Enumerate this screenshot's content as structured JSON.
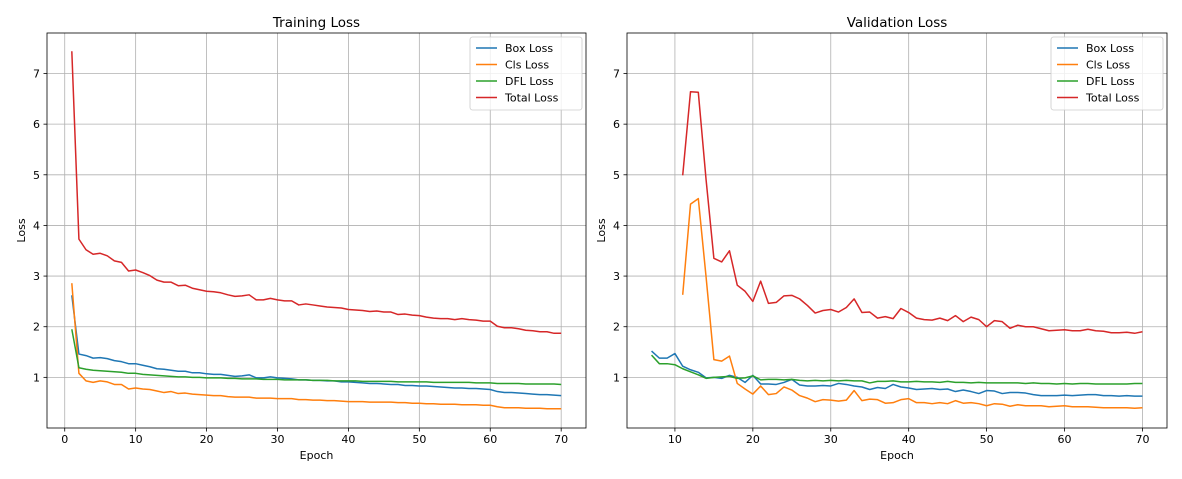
{
  "chart_data": [
    {
      "type": "line",
      "title": "Training Loss",
      "xlabel": "Epoch",
      "ylabel": "Loss",
      "xlim": [
        -2.5,
        73.5
      ],
      "ylim": [
        0.0,
        7.8
      ],
      "xticks": [
        0,
        10,
        20,
        30,
        40,
        50,
        60,
        70
      ],
      "yticks": [
        1,
        2,
        3,
        4,
        5,
        6,
        7
      ],
      "grid": true,
      "legend_position": "top-right",
      "series": [
        {
          "name": "Box Loss",
          "color": "#1f77b4",
          "x_start": 1,
          "values": [
            2.62,
            1.46,
            1.43,
            1.38,
            1.39,
            1.37,
            1.33,
            1.31,
            1.27,
            1.27,
            1.24,
            1.21,
            1.17,
            1.16,
            1.14,
            1.12,
            1.12,
            1.09,
            1.09,
            1.07,
            1.06,
            1.06,
            1.04,
            1.02,
            1.03,
            1.05,
            0.99,
            0.99,
            1.01,
            0.99,
            0.98,
            0.97,
            0.95,
            0.95,
            0.94,
            0.94,
            0.93,
            0.93,
            0.91,
            0.91,
            0.9,
            0.89,
            0.88,
            0.88,
            0.87,
            0.86,
            0.86,
            0.84,
            0.84,
            0.83,
            0.83,
            0.82,
            0.81,
            0.8,
            0.79,
            0.79,
            0.78,
            0.78,
            0.77,
            0.76,
            0.72,
            0.7,
            0.7,
            0.69,
            0.68,
            0.67,
            0.66,
            0.66,
            0.65,
            0.64
          ]
        },
        {
          "name": "Cls Loss",
          "color": "#ff7f0e",
          "x_start": 1,
          "values": [
            2.86,
            1.08,
            0.93,
            0.9,
            0.93,
            0.91,
            0.86,
            0.86,
            0.77,
            0.79,
            0.77,
            0.76,
            0.73,
            0.7,
            0.72,
            0.68,
            0.69,
            0.67,
            0.66,
            0.65,
            0.64,
            0.64,
            0.62,
            0.61,
            0.61,
            0.61,
            0.59,
            0.59,
            0.59,
            0.58,
            0.58,
            0.58,
            0.56,
            0.56,
            0.55,
            0.55,
            0.54,
            0.54,
            0.53,
            0.52,
            0.52,
            0.52,
            0.51,
            0.51,
            0.51,
            0.51,
            0.5,
            0.5,
            0.49,
            0.49,
            0.48,
            0.48,
            0.47,
            0.47,
            0.47,
            0.46,
            0.46,
            0.46,
            0.45,
            0.45,
            0.42,
            0.4,
            0.4,
            0.4,
            0.39,
            0.39,
            0.39,
            0.38,
            0.38,
            0.38
          ]
        },
        {
          "name": "DFL Loss",
          "color": "#2ca02c",
          "x_start": 1,
          "values": [
            1.95,
            1.19,
            1.16,
            1.14,
            1.13,
            1.12,
            1.11,
            1.1,
            1.08,
            1.08,
            1.06,
            1.05,
            1.04,
            1.03,
            1.02,
            1.01,
            1.01,
            1.0,
            1.0,
            0.99,
            0.99,
            0.99,
            0.98,
            0.98,
            0.97,
            0.97,
            0.97,
            0.96,
            0.96,
            0.96,
            0.95,
            0.95,
            0.95,
            0.95,
            0.94,
            0.94,
            0.94,
            0.93,
            0.93,
            0.93,
            0.93,
            0.92,
            0.92,
            0.92,
            0.92,
            0.92,
            0.91,
            0.91,
            0.91,
            0.91,
            0.91,
            0.9,
            0.9,
            0.9,
            0.9,
            0.9,
            0.9,
            0.89,
            0.89,
            0.89,
            0.88,
            0.88,
            0.88,
            0.88,
            0.87,
            0.87,
            0.87,
            0.87,
            0.87,
            0.86
          ]
        },
        {
          "name": "Total Loss",
          "color": "#d62728",
          "x_start": 1,
          "values": [
            7.44,
            3.73,
            3.52,
            3.43,
            3.45,
            3.4,
            3.3,
            3.27,
            3.1,
            3.12,
            3.07,
            3.01,
            2.92,
            2.88,
            2.88,
            2.81,
            2.82,
            2.76,
            2.73,
            2.7,
            2.69,
            2.67,
            2.63,
            2.6,
            2.61,
            2.63,
            2.53,
            2.53,
            2.56,
            2.53,
            2.51,
            2.51,
            2.43,
            2.45,
            2.43,
            2.41,
            2.39,
            2.38,
            2.37,
            2.34,
            2.33,
            2.32,
            2.3,
            2.31,
            2.29,
            2.29,
            2.24,
            2.25,
            2.23,
            2.22,
            2.19,
            2.17,
            2.16,
            2.16,
            2.14,
            2.16,
            2.14,
            2.13,
            2.11,
            2.11,
            2.01,
            1.98,
            1.98,
            1.96,
            1.93,
            1.92,
            1.9,
            1.9,
            1.87,
            1.87
          ]
        }
      ]
    },
    {
      "type": "line",
      "title": "Validation Loss",
      "xlabel": "Epoch",
      "ylabel": "Loss",
      "xlim": [
        3.85,
        73.15
      ],
      "ylim": [
        0.0,
        7.8
      ],
      "xticks": [
        10,
        20,
        30,
        40,
        50,
        60,
        70
      ],
      "yticks": [
        1,
        2,
        3,
        4,
        5,
        6,
        7
      ],
      "grid": true,
      "legend_position": "top-right",
      "series": [
        {
          "name": "Box Loss",
          "color": "#1f77b4",
          "x_start": 7,
          "values": [
            1.52,
            1.38,
            1.38,
            1.47,
            1.22,
            1.15,
            1.1,
            0.99,
            1.0,
            0.98,
            1.04,
            1.0,
            0.9,
            1.04,
            0.87,
            0.87,
            0.86,
            0.9,
            0.96,
            0.85,
            0.83,
            0.83,
            0.84,
            0.83,
            0.88,
            0.86,
            0.83,
            0.81,
            0.76,
            0.8,
            0.78,
            0.86,
            0.81,
            0.79,
            0.76,
            0.77,
            0.78,
            0.76,
            0.77,
            0.72,
            0.75,
            0.72,
            0.68,
            0.74,
            0.73,
            0.68,
            0.7,
            0.7,
            0.69,
            0.66,
            0.64,
            0.64,
            0.64,
            0.65,
            0.64,
            0.65,
            0.66,
            0.66,
            0.64,
            0.64,
            0.63,
            0.64,
            0.63,
            0.63
          ]
        },
        {
          "name": "Cls Loss",
          "color": "#ff7f0e",
          "x_start": 11,
          "values": [
            2.63,
            4.42,
            4.53,
            2.98,
            1.35,
            1.32,
            1.42,
            0.88,
            0.77,
            0.67,
            0.83,
            0.66,
            0.68,
            0.81,
            0.75,
            0.64,
            0.59,
            0.52,
            0.56,
            0.55,
            0.53,
            0.55,
            0.74,
            0.54,
            0.57,
            0.56,
            0.49,
            0.5,
            0.56,
            0.58,
            0.5,
            0.5,
            0.48,
            0.5,
            0.48,
            0.54,
            0.49,
            0.5,
            0.48,
            0.44,
            0.48,
            0.47,
            0.43,
            0.46,
            0.44,
            0.44,
            0.44,
            0.42,
            0.43,
            0.44,
            0.42,
            0.42,
            0.42,
            0.41,
            0.4,
            0.4,
            0.4,
            0.4,
            0.39,
            0.4
          ]
        },
        {
          "name": "DFL Loss",
          "color": "#2ca02c",
          "x_start": 7,
          "values": [
            1.44,
            1.27,
            1.27,
            1.25,
            1.17,
            1.11,
            1.05,
            0.98,
            1.0,
            1.01,
            1.02,
            0.98,
            0.99,
            1.03,
            0.95,
            0.96,
            0.96,
            0.95,
            0.96,
            0.94,
            0.93,
            0.94,
            0.93,
            0.94,
            0.93,
            0.94,
            0.93,
            0.93,
            0.89,
            0.92,
            0.92,
            0.93,
            0.91,
            0.91,
            0.92,
            0.91,
            0.91,
            0.9,
            0.92,
            0.9,
            0.9,
            0.89,
            0.9,
            0.89,
            0.89,
            0.89,
            0.89,
            0.89,
            0.88,
            0.89,
            0.88,
            0.88,
            0.87,
            0.88,
            0.87,
            0.88,
            0.88,
            0.87,
            0.87,
            0.87,
            0.87,
            0.87,
            0.88,
            0.88
          ]
        },
        {
          "name": "Total Loss",
          "color": "#d62728",
          "x_start": 11,
          "values": [
            4.99,
            6.64,
            6.63,
            4.9,
            3.35,
            3.28,
            3.5,
            2.82,
            2.7,
            2.5,
            2.9,
            2.46,
            2.48,
            2.61,
            2.62,
            2.55,
            2.42,
            2.27,
            2.32,
            2.34,
            2.29,
            2.38,
            2.55,
            2.28,
            2.29,
            2.17,
            2.2,
            2.16,
            2.36,
            2.28,
            2.17,
            2.14,
            2.13,
            2.17,
            2.12,
            2.22,
            2.1,
            2.19,
            2.14,
            2.0,
            2.12,
            2.1,
            1.97,
            2.03,
            2.0,
            2.0,
            1.96,
            1.92,
            1.93,
            1.94,
            1.92,
            1.92,
            1.95,
            1.92,
            1.91,
            1.88,
            1.88,
            1.89,
            1.87,
            1.9
          ]
        }
      ]
    }
  ]
}
